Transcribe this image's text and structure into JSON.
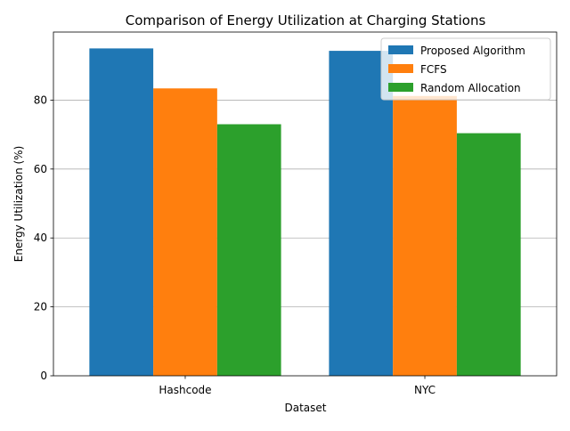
{
  "chart_data": {
    "type": "bar",
    "title": "Comparison of Energy Utilization at Charging Stations",
    "xlabel": "Dataset",
    "ylabel": "Energy Utilization (%)",
    "categories": [
      "Hashcode",
      "NYC"
    ],
    "series": [
      {
        "name": "Proposed Algorithm",
        "values": [
          95.0,
          94.3
        ],
        "color": "#1f77b4"
      },
      {
        "name": "FCFS",
        "values": [
          83.4,
          81.2
        ],
        "color": "#ff7f0e"
      },
      {
        "name": "Random Allocation",
        "values": [
          73.0,
          70.4
        ],
        "color": "#2ca02c"
      }
    ],
    "ylim": [
      0,
      99.75
    ],
    "yticks": [
      0,
      20,
      40,
      60,
      80
    ],
    "ytick_labels": [
      "0",
      "20",
      "40",
      "60",
      "80"
    ],
    "grid": "y",
    "legend_position": "top-right"
  }
}
